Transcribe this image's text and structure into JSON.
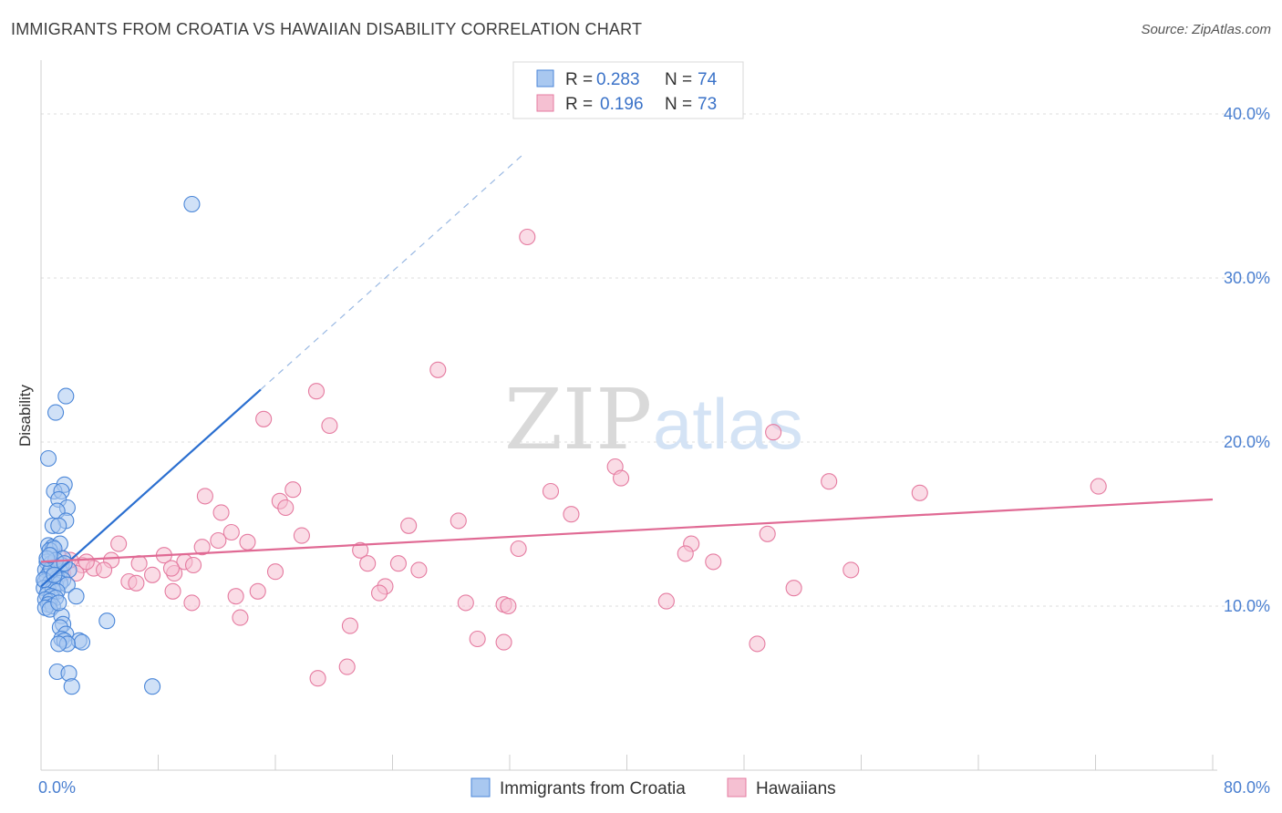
{
  "header": {
    "title": "IMMIGRANTS FROM CROATIA VS HAWAIIAN DISABILITY CORRELATION CHART",
    "source": "Source: ZipAtlas.com"
  },
  "watermark": {
    "part1": "ZIP",
    "part2": "atlas"
  },
  "colors": {
    "blue": "#4a86d8",
    "blue_fill": "#a9c8f0",
    "blue_line": "#2b6fd0",
    "pink": "#e57ba0",
    "pink_fill": "#f5c0d2",
    "pink_line": "#e06a94",
    "grid": "#d9d9d9",
    "tick": "#4a7fd0"
  },
  "legend_top": {
    "rows": [
      {
        "r_label": "R =",
        "r_value": "0.283",
        "n_label": "N =",
        "n_value": "74"
      },
      {
        "r_label": "R =",
        "r_value": "0.196",
        "n_label": "N =",
        "n_value": "73"
      }
    ]
  },
  "chart_data": {
    "type": "scatter",
    "title": "IMMIGRANTS FROM CROATIA VS HAWAIIAN DISABILITY CORRELATION CHART",
    "xlabel": "",
    "ylabel": "Disability",
    "xlim": [
      0,
      80
    ],
    "ylim": [
      0,
      42.5
    ],
    "y_ticks": [
      10,
      20,
      30,
      40
    ],
    "y_tick_labels": [
      "10.0%",
      "20.0%",
      "30.0%",
      "40.0%"
    ],
    "x_tick_labels": [
      "0.0%",
      "80.0%"
    ],
    "grid": true,
    "legend_position": "bottom",
    "series": [
      {
        "name": "Immigrants from Croatia",
        "color": "#4a86d8",
        "r": 0.283,
        "n": 74,
        "trend": {
          "x0": 0,
          "y0": 11.2,
          "x1": 15,
          "y1": 23.2,
          "dash_to_x": 33,
          "dash_to_y": 37.6
        },
        "points": [
          [
            10.3,
            34.5
          ],
          [
            1.7,
            22.8
          ],
          [
            1.0,
            21.8
          ],
          [
            0.5,
            19.0
          ],
          [
            1.6,
            17.4
          ],
          [
            0.9,
            17.0
          ],
          [
            1.4,
            17.0
          ],
          [
            1.2,
            16.5
          ],
          [
            1.8,
            16.0
          ],
          [
            1.1,
            15.8
          ],
          [
            1.7,
            15.2
          ],
          [
            0.8,
            14.9
          ],
          [
            1.2,
            14.9
          ],
          [
            0.5,
            13.7
          ],
          [
            0.8,
            13.6
          ],
          [
            1.3,
            13.8
          ],
          [
            0.6,
            13.4
          ],
          [
            0.9,
            13.5
          ],
          [
            1.5,
            12.9
          ],
          [
            0.4,
            12.7
          ],
          [
            0.7,
            12.6
          ],
          [
            1.0,
            12.4
          ],
          [
            1.4,
            12.5
          ],
          [
            0.3,
            12.2
          ],
          [
            0.6,
            12.1
          ],
          [
            0.9,
            12.0
          ],
          [
            1.3,
            12.1
          ],
          [
            1.9,
            12.2
          ],
          [
            0.4,
            11.8
          ],
          [
            0.8,
            11.8
          ],
          [
            1.1,
            11.7
          ],
          [
            1.5,
            11.6
          ],
          [
            0.3,
            11.5
          ],
          [
            0.6,
            11.4
          ],
          [
            1.0,
            11.3
          ],
          [
            1.3,
            11.4
          ],
          [
            1.8,
            11.3
          ],
          [
            0.2,
            11.1
          ],
          [
            0.5,
            11.0
          ],
          [
            0.8,
            11.0
          ],
          [
            1.1,
            10.9
          ],
          [
            0.4,
            10.7
          ],
          [
            0.7,
            10.6
          ],
          [
            1.0,
            10.5
          ],
          [
            0.3,
            10.4
          ],
          [
            0.6,
            10.3
          ],
          [
            2.4,
            10.6
          ],
          [
            0.5,
            10.1
          ],
          [
            0.8,
            10.0
          ],
          [
            0.3,
            9.9
          ],
          [
            0.6,
            9.8
          ],
          [
            1.4,
            9.4
          ],
          [
            1.5,
            8.9
          ],
          [
            1.3,
            8.7
          ],
          [
            1.7,
            8.3
          ],
          [
            1.4,
            8.0
          ],
          [
            1.6,
            7.9
          ],
          [
            2.6,
            7.9
          ],
          [
            2.8,
            7.8
          ],
          [
            1.8,
            7.7
          ],
          [
            1.2,
            7.7
          ],
          [
            4.5,
            9.1
          ],
          [
            1.1,
            6.0
          ],
          [
            1.9,
            5.9
          ],
          [
            2.1,
            5.1
          ],
          [
            7.6,
            5.1
          ],
          [
            0.7,
            12.3
          ],
          [
            1.0,
            12.8
          ],
          [
            0.2,
            11.6
          ],
          [
            1.2,
            10.2
          ],
          [
            0.4,
            12.9
          ],
          [
            1.6,
            12.6
          ],
          [
            0.9,
            11.9
          ],
          [
            0.6,
            13.1
          ]
        ]
      },
      {
        "name": "Hawaiians",
        "color": "#e57ba0",
        "r": 0.196,
        "n": 73,
        "trend": {
          "x0": 0,
          "y0": 12.7,
          "x1": 80,
          "y1": 16.5
        },
        "points": [
          [
            33.2,
            32.5
          ],
          [
            27.1,
            24.4
          ],
          [
            18.8,
            23.1
          ],
          [
            15.2,
            21.4
          ],
          [
            19.7,
            21.0
          ],
          [
            50.0,
            20.6
          ],
          [
            39.2,
            18.5
          ],
          [
            39.6,
            17.8
          ],
          [
            53.8,
            17.6
          ],
          [
            72.2,
            17.3
          ],
          [
            60.0,
            16.9
          ],
          [
            17.2,
            17.1
          ],
          [
            34.8,
            17.0
          ],
          [
            11.2,
            16.7
          ],
          [
            16.3,
            16.4
          ],
          [
            16.7,
            16.0
          ],
          [
            12.3,
            15.7
          ],
          [
            36.2,
            15.6
          ],
          [
            28.5,
            15.2
          ],
          [
            25.1,
            14.9
          ],
          [
            13.0,
            14.5
          ],
          [
            17.8,
            14.3
          ],
          [
            49.6,
            14.4
          ],
          [
            12.1,
            14.0
          ],
          [
            14.1,
            13.9
          ],
          [
            11.0,
            13.6
          ],
          [
            5.3,
            13.8
          ],
          [
            44.4,
            13.8
          ],
          [
            21.8,
            13.4
          ],
          [
            32.6,
            13.5
          ],
          [
            44.0,
            13.2
          ],
          [
            8.4,
            13.1
          ],
          [
            9.8,
            12.7
          ],
          [
            4.8,
            12.8
          ],
          [
            22.3,
            12.6
          ],
          [
            24.4,
            12.6
          ],
          [
            45.9,
            12.7
          ],
          [
            6.7,
            12.6
          ],
          [
            2.8,
            12.5
          ],
          [
            3.6,
            12.3
          ],
          [
            4.3,
            12.2
          ],
          [
            16.0,
            12.1
          ],
          [
            25.8,
            12.2
          ],
          [
            1.5,
            12.0
          ],
          [
            2.4,
            12.0
          ],
          [
            7.6,
            11.9
          ],
          [
            9.1,
            12.0
          ],
          [
            8.9,
            12.3
          ],
          [
            10.4,
            12.5
          ],
          [
            6.0,
            11.5
          ],
          [
            6.5,
            11.4
          ],
          [
            55.3,
            12.2
          ],
          [
            23.5,
            11.2
          ],
          [
            23.1,
            10.8
          ],
          [
            14.8,
            10.9
          ],
          [
            13.3,
            10.6
          ],
          [
            51.4,
            11.1
          ],
          [
            9.0,
            10.9
          ],
          [
            29.0,
            10.2
          ],
          [
            31.6,
            10.1
          ],
          [
            31.9,
            10.0
          ],
          [
            42.7,
            10.3
          ],
          [
            10.3,
            10.2
          ],
          [
            13.6,
            9.3
          ],
          [
            21.1,
            8.8
          ],
          [
            29.8,
            8.0
          ],
          [
            31.6,
            7.8
          ],
          [
            48.9,
            7.7
          ],
          [
            20.9,
            6.3
          ],
          [
            18.9,
            5.6
          ],
          [
            1.2,
            13.0
          ],
          [
            2.0,
            12.8
          ],
          [
            3.1,
            12.7
          ]
        ]
      }
    ]
  },
  "legend_bottom": {
    "items": [
      {
        "label": "Immigrants from Croatia"
      },
      {
        "label": "Hawaiians"
      }
    ]
  }
}
